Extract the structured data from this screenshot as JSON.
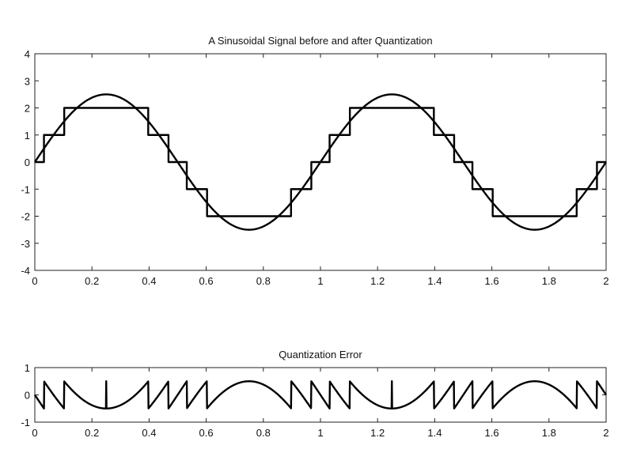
{
  "chart_data": [
    {
      "type": "line",
      "title": "A Sinusoidal Signal before and after Quantization",
      "xlabel": "",
      "ylabel": "",
      "xlim": [
        0,
        2
      ],
      "ylim": [
        -4,
        4
      ],
      "grid": false,
      "x_ticks": [
        "0",
        "0.2",
        "0.4",
        "0.6",
        "0.8",
        "1",
        "1.2",
        "1.4",
        "1.6",
        "1.8",
        "2"
      ],
      "y_ticks": [
        "4",
        "3",
        "2",
        "1",
        "0",
        "-1",
        "-2",
        "-3",
        "-4"
      ],
      "signal": {
        "amplitude": 2.5,
        "frequency": 1,
        "phase": 0
      },
      "series": [
        {
          "kind": "smooth",
          "x": [
            0,
            0.05,
            0.1,
            0.15,
            0.2,
            0.25,
            0.3,
            0.35,
            0.4,
            0.45,
            0.5,
            0.55,
            0.6,
            0.65,
            0.7,
            0.75,
            0.8,
            0.85,
            0.9,
            0.95,
            1.0,
            1.05,
            1.1,
            1.15,
            1.2,
            1.25,
            1.3,
            1.35,
            1.4,
            1.45,
            1.5,
            1.55,
            1.6,
            1.65,
            1.7,
            1.75,
            1.8,
            1.85,
            1.9,
            1.95,
            2.0
          ],
          "values": [
            0,
            0.77,
            1.47,
            2.02,
            2.38,
            2.5,
            2.38,
            2.02,
            1.47,
            0.77,
            0,
            -0.77,
            -1.47,
            -2.02,
            -2.38,
            -2.5,
            -2.38,
            -2.02,
            -1.47,
            -0.77,
            0,
            0.77,
            1.47,
            2.02,
            2.38,
            2.5,
            2.38,
            2.02,
            1.47,
            0.77,
            0,
            -0.77,
            -1.47,
            -2.02,
            -2.38,
            -2.5,
            -2.38,
            -2.02,
            -1.47,
            -0.77,
            0
          ]
        },
        {
          "kind": "step",
          "x": [
            0,
            0.032,
            0.103,
            0.397,
            0.468,
            0.532,
            0.603,
            0.897,
            0.968,
            1.032,
            1.103,
            1.397,
            1.468,
            1.532,
            1.603,
            1.897,
            1.968,
            2.0
          ],
          "values": [
            0,
            1,
            2,
            1,
            0,
            -1,
            -2,
            -1,
            0,
            1,
            2,
            1,
            0,
            -1,
            -2,
            -1,
            0,
            0
          ]
        }
      ]
    },
    {
      "type": "line",
      "title": "Quantization Error",
      "xlabel": "",
      "ylabel": "",
      "xlim": [
        0,
        2
      ],
      "ylim": [
        -1,
        1
      ],
      "grid": false,
      "x_ticks": [
        "0",
        "0.2",
        "0.4",
        "0.6",
        "0.8",
        "1",
        "1.2",
        "1.4",
        "1.6",
        "1.8",
        "2"
      ],
      "y_ticks": [
        "1",
        "0",
        "-1"
      ],
      "series": [
        {
          "kind": "error",
          "description_formula": "round(2.5*sin(2*pi*x)) - 2.5*sin(2*pi*x)"
        }
      ]
    }
  ]
}
